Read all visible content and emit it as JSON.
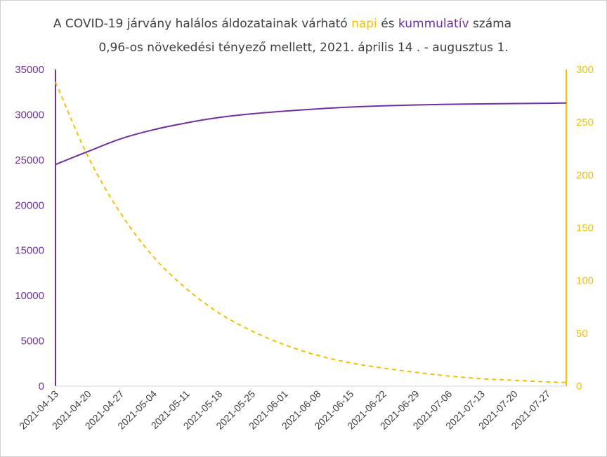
{
  "chart_data": {
    "type": "line",
    "title_parts": {
      "part1": "A COVID-19 járvány halálos áldozatainak várható ",
      "napi": "napi",
      "part2": " és ",
      "kummulativ": "kummulatív",
      "part3": " száma"
    },
    "subtitle": "0,96-os növekedési tényező mellett, 2021. április 14 . - augusztus 1.",
    "x_range": [
      "2021-04-13",
      "2021-07-31"
    ],
    "x_tick_labels": [
      "2021-04-13",
      "2021-04-20",
      "2021-04-27",
      "2021-05-04",
      "2021-05-11",
      "2021-05-18",
      "2021-05-25",
      "2021-06-01",
      "2021-06-08",
      "2021-06-15",
      "2021-06-22",
      "2021-06-29",
      "2021-07-06",
      "2021-07-13",
      "2021-07-20",
      "2021-07-27"
    ],
    "y_left": {
      "min": 0,
      "max": 35000,
      "ticks": [
        0,
        5000,
        10000,
        15000,
        20000,
        25000,
        30000,
        35000
      ],
      "color": "#7030a0"
    },
    "y_right": {
      "min": 0,
      "max": 300,
      "ticks": [
        0,
        50,
        100,
        150,
        200,
        250,
        300
      ],
      "color": "#f5c000"
    },
    "series": [
      {
        "axis": "left",
        "style": "solid",
        "color": "#7030a0",
        "x": [
          "2021-04-13",
          "2021-04-20",
          "2021-04-27",
          "2021-05-04",
          "2021-05-11",
          "2021-05-18",
          "2021-05-25",
          "2021-06-01",
          "2021-06-08",
          "2021-06-15",
          "2021-06-22",
          "2021-06-29",
          "2021-07-06",
          "2021-07-13",
          "2021-07-20",
          "2021-07-27",
          "2021-07-31"
        ],
        "values": [
          24500,
          25950,
          27350,
          28350,
          29100,
          29700,
          30100,
          30400,
          30650,
          30850,
          30980,
          31080,
          31150,
          31200,
          31240,
          31270,
          31290
        ]
      },
      {
        "axis": "right",
        "style": "dashed",
        "color": "#f5c000",
        "x": [
          "2021-04-13",
          "2021-04-20",
          "2021-04-27",
          "2021-05-04",
          "2021-05-11",
          "2021-05-18",
          "2021-05-25",
          "2021-06-01",
          "2021-06-08",
          "2021-06-15",
          "2021-06-22",
          "2021-06-29",
          "2021-07-06",
          "2021-07-13",
          "2021-07-20",
          "2021-07-27",
          "2021-07-31"
        ],
        "values": [
          288,
          217,
          163,
          122,
          92,
          69,
          52,
          39,
          29,
          22,
          17,
          13,
          9.5,
          7,
          5.5,
          4,
          3.5
        ]
      }
    ]
  }
}
